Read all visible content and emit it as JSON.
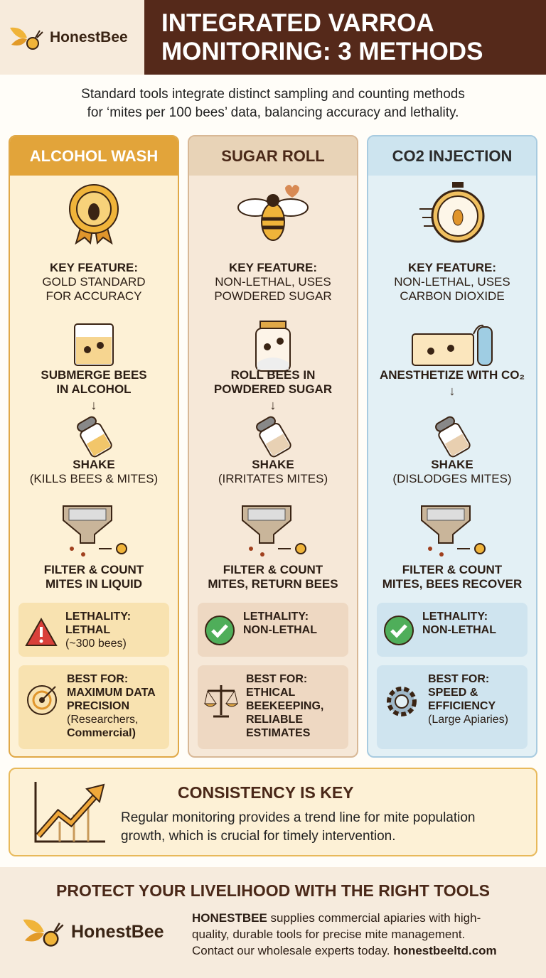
{
  "brand": {
    "name": "HonestBee"
  },
  "header": {
    "title_line1": "INTEGRATED VARROA",
    "title_line2": "MONITORING: 3 METHODS"
  },
  "subtitle": {
    "line1": "Standard tools integrate distinct sampling and counting methods",
    "line2": "for ‘mites per 100 bees’ data, balancing accuracy and lethality."
  },
  "colors": {
    "header_brown": "#55291a",
    "alcohol": "#e2a43a",
    "sugar": "#e8d3b7",
    "co2": "#cde4ef"
  },
  "methods": [
    {
      "title": "ALCOHOL WASH",
      "feature": [
        "KEY FEATURE:",
        "GOLD STANDARD",
        "FOR ACCURACY"
      ],
      "step1": [
        "SUBMERGE BEES",
        "IN ALCOHOL"
      ],
      "step2": [
        "SHAKE",
        "(KILLS BEES & MITES)"
      ],
      "step3": [
        "FILTER & COUNT",
        "MITES IN LIQUID"
      ],
      "lethality": [
        "LETHALITY:",
        "LETHAL",
        "(~300 bees)"
      ],
      "lethality_icon": "warning-icon",
      "best": [
        "BEST FOR:",
        "MAXIMUM DATA",
        "PRECISION",
        "(Researchers,",
        "Commercial)"
      ],
      "best_icon": "target-icon"
    },
    {
      "title": "SUGAR ROLL",
      "feature": [
        "KEY FEATURE:",
        "NON-LETHAL, USES",
        "POWDERED SUGAR"
      ],
      "step1": [
        "ROLL BEES IN",
        "POWDERED SUGAR"
      ],
      "step2": [
        "SHAKE",
        "(IRRITATES MITES)"
      ],
      "step3": [
        "FILTER & COUNT",
        "MITES, RETURN BEES"
      ],
      "lethality": [
        "LETHALITY:",
        "NON-LETHAL",
        ""
      ],
      "lethality_icon": "check-icon",
      "best": [
        "BEST FOR:",
        "ETHICAL",
        "BEEKEEPING,",
        "RELIABLE",
        "ESTIMATES"
      ],
      "best_icon": "scale-icon"
    },
    {
      "title": "CO2 INJECTION",
      "feature": [
        "KEY FEATURE:",
        "NON-LETHAL, USES",
        "CARBON DIOXIDE"
      ],
      "step1": [
        "ANESTHETIZE WITH CO₂",
        ""
      ],
      "step2": [
        "SHAKE",
        "(DISLODGES MITES)"
      ],
      "step3": [
        "FILTER & COUNT",
        "MITES, BEES RECOVER"
      ],
      "lethality": [
        "LETHALITY:",
        "NON-LETHAL",
        ""
      ],
      "lethality_icon": "check-icon",
      "best": [
        "BEST FOR:",
        "SPEED &",
        "EFFICIENCY",
        "(Large Apiaries)",
        ""
      ],
      "best_icon": "gear-icon",
      "co2_label": "CO₂"
    }
  ],
  "arrow": "↓",
  "consistency": {
    "title": "CONSISTENCY IS KEY",
    "line1": "Regular monitoring provides a trend line for mite population",
    "line2": "growth, which is crucial for timely intervention."
  },
  "footer": {
    "title": "PROTECT YOUR LIVELIHOOD WITH THE RIGHT TOOLS",
    "brand_bold": "HONESTBEE",
    "line1": " supplies commercial apiaries with high-",
    "line2": "quality, durable tools for precise mite management.",
    "line3": "Contact our wholesale experts today. ",
    "url": "honestbeeltd.com"
  }
}
